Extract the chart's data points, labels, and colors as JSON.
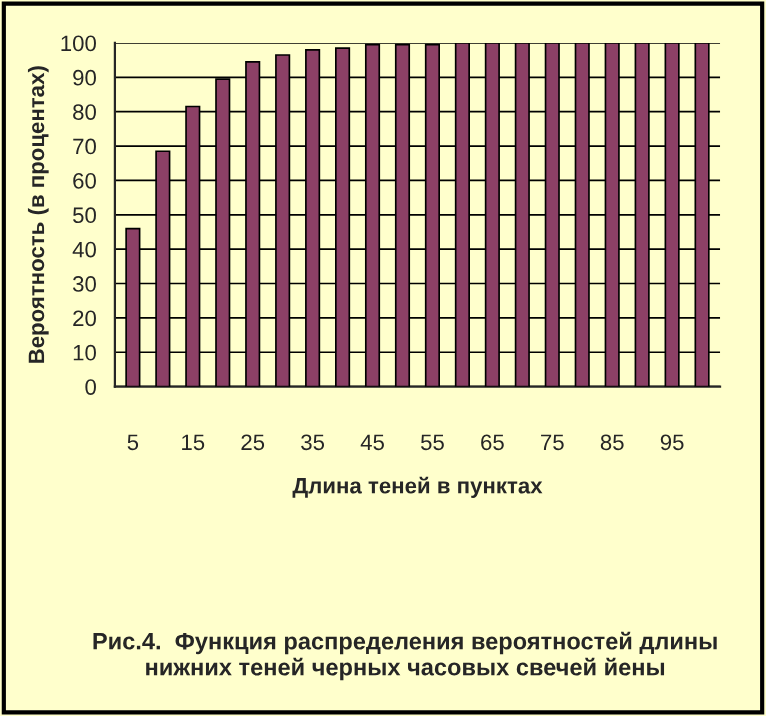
{
  "chart_data": {
    "type": "bar",
    "title": "Рис.4.  Функция распределения вероятностей длины нижних теней черных часовых свечей йены",
    "xlabel": "Длина теней в пунктах",
    "ylabel": "Вероятность (в процентах)",
    "categories": [
      "5",
      null,
      "15",
      null,
      "25",
      null,
      "35",
      null,
      "45",
      null,
      "55",
      null,
      "65",
      null,
      "75",
      null,
      "85",
      null,
      "95",
      null
    ],
    "values": [
      46,
      68.5,
      81.5,
      89.5,
      94.5,
      96.5,
      98,
      98.5,
      99.5,
      99.5,
      99.5,
      100,
      100,
      100,
      100,
      100,
      100,
      100,
      100,
      100
    ],
    "color": "#993366",
    "ylim": [
      0,
      100
    ],
    "yticks": [
      0,
      10,
      20,
      30,
      40,
      50,
      60,
      70,
      80,
      90,
      100
    ],
    "grid": "y"
  }
}
